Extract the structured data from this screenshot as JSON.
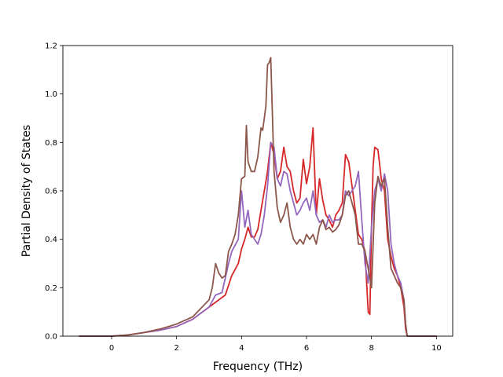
{
  "chart_data": {
    "type": "line",
    "title": "",
    "xlabel": "Frequency (THz)",
    "ylabel": "Partial Density of States",
    "xlim": [
      -1.5,
      10.5
    ],
    "ylim": [
      0.0,
      1.2
    ],
    "xticks": [
      0,
      2,
      4,
      6,
      8,
      10
    ],
    "yticks": [
      0.0,
      0.2,
      0.4,
      0.6,
      0.8,
      1.0,
      1.2
    ],
    "xtick_labels": [
      "0",
      "2",
      "4",
      "6",
      "8",
      "10"
    ],
    "ytick_labels": [
      "0.0",
      "0.2",
      "0.4",
      "0.6",
      "0.8",
      "1.0",
      "1.2"
    ],
    "grid": false,
    "legend": "none",
    "series": [
      {
        "color": "#d62728",
        "x": [
          -1.0,
          0.0,
          0.5,
          1.0,
          1.5,
          2.0,
          2.5,
          3.0,
          3.5,
          3.7,
          3.9,
          4.0,
          4.1,
          4.2,
          4.3,
          4.4,
          4.5,
          4.6,
          4.7,
          4.8,
          4.9,
          5.0,
          5.1,
          5.2,
          5.3,
          5.4,
          5.5,
          5.6,
          5.7,
          5.8,
          5.9,
          6.0,
          6.1,
          6.2,
          6.3,
          6.4,
          6.5,
          6.6,
          6.7,
          6.8,
          6.9,
          7.0,
          7.1,
          7.2,
          7.3,
          7.4,
          7.5,
          7.6,
          7.7,
          7.8,
          7.9,
          7.95,
          8.0,
          8.05,
          8.1,
          8.2,
          8.3,
          8.4,
          8.5,
          8.6,
          8.7,
          8.8,
          8.9,
          9.0,
          9.05,
          9.1,
          9.2,
          10.0
        ],
        "y": [
          0.0,
          0.0,
          0.005,
          0.015,
          0.025,
          0.04,
          0.07,
          0.12,
          0.17,
          0.25,
          0.3,
          0.36,
          0.4,
          0.45,
          0.41,
          0.41,
          0.44,
          0.52,
          0.6,
          0.68,
          0.8,
          0.75,
          0.65,
          0.68,
          0.78,
          0.7,
          0.68,
          0.6,
          0.55,
          0.57,
          0.73,
          0.63,
          0.7,
          0.86,
          0.5,
          0.65,
          0.56,
          0.5,
          0.48,
          0.45,
          0.5,
          0.52,
          0.55,
          0.75,
          0.72,
          0.62,
          0.52,
          0.42,
          0.4,
          0.35,
          0.1,
          0.09,
          0.45,
          0.7,
          0.78,
          0.77,
          0.65,
          0.6,
          0.4,
          0.33,
          0.28,
          0.25,
          0.2,
          0.12,
          0.03,
          0.0,
          0.0,
          0.0
        ]
      },
      {
        "color": "#9467bd",
        "x": [
          -1.0,
          0.0,
          0.5,
          1.0,
          1.5,
          2.0,
          2.5,
          3.0,
          3.2,
          3.4,
          3.6,
          3.7,
          3.9,
          4.0,
          4.1,
          4.2,
          4.3,
          4.4,
          4.5,
          4.6,
          4.7,
          4.8,
          4.9,
          5.0,
          5.1,
          5.2,
          5.3,
          5.4,
          5.5,
          5.6,
          5.7,
          5.8,
          5.9,
          6.0,
          6.1,
          6.2,
          6.3,
          6.4,
          6.5,
          6.6,
          6.7,
          6.8,
          6.9,
          7.0,
          7.1,
          7.2,
          7.3,
          7.4,
          7.5,
          7.6,
          7.7,
          7.8,
          7.9,
          8.0,
          8.1,
          8.2,
          8.3,
          8.4,
          8.5,
          8.6,
          8.7,
          8.8,
          8.9,
          9.0,
          9.05,
          9.1,
          9.2,
          10.0
        ],
        "y": [
          0.0,
          0.0,
          0.005,
          0.015,
          0.025,
          0.04,
          0.07,
          0.12,
          0.17,
          0.18,
          0.3,
          0.35,
          0.4,
          0.6,
          0.45,
          0.52,
          0.42,
          0.4,
          0.38,
          0.42,
          0.5,
          0.62,
          0.8,
          0.78,
          0.65,
          0.62,
          0.68,
          0.67,
          0.6,
          0.55,
          0.5,
          0.52,
          0.55,
          0.57,
          0.52,
          0.6,
          0.5,
          0.47,
          0.48,
          0.45,
          0.5,
          0.47,
          0.48,
          0.48,
          0.5,
          0.6,
          0.58,
          0.6,
          0.62,
          0.68,
          0.48,
          0.3,
          0.22,
          0.45,
          0.6,
          0.65,
          0.6,
          0.67,
          0.6,
          0.38,
          0.3,
          0.25,
          0.22,
          0.15,
          0.05,
          0.0,
          0.0,
          0.0
        ]
      },
      {
        "color": "#8c564b",
        "x": [
          -1.0,
          0.0,
          0.5,
          1.0,
          1.5,
          2.0,
          2.5,
          3.0,
          3.1,
          3.2,
          3.3,
          3.4,
          3.5,
          3.6,
          3.7,
          3.8,
          3.9,
          4.0,
          4.1,
          4.15,
          4.2,
          4.3,
          4.4,
          4.5,
          4.6,
          4.65,
          4.7,
          4.75,
          4.8,
          4.85,
          4.9,
          5.0,
          5.1,
          5.2,
          5.3,
          5.4,
          5.5,
          5.6,
          5.7,
          5.8,
          5.9,
          6.0,
          6.1,
          6.2,
          6.3,
          6.4,
          6.5,
          6.6,
          6.7,
          6.8,
          6.9,
          7.0,
          7.1,
          7.2,
          7.3,
          7.4,
          7.5,
          7.6,
          7.7,
          7.8,
          7.9,
          8.0,
          8.1,
          8.2,
          8.3,
          8.4,
          8.5,
          8.6,
          8.7,
          8.8,
          8.9,
          9.0,
          9.05,
          9.1,
          9.2,
          10.0
        ],
        "y": [
          0.0,
          0.0,
          0.005,
          0.015,
          0.03,
          0.05,
          0.08,
          0.15,
          0.2,
          0.3,
          0.26,
          0.24,
          0.25,
          0.35,
          0.38,
          0.42,
          0.5,
          0.65,
          0.66,
          0.87,
          0.72,
          0.68,
          0.68,
          0.74,
          0.86,
          0.85,
          0.9,
          0.95,
          1.12,
          1.13,
          1.15,
          0.68,
          0.53,
          0.47,
          0.5,
          0.55,
          0.45,
          0.4,
          0.38,
          0.4,
          0.38,
          0.42,
          0.4,
          0.42,
          0.38,
          0.45,
          0.48,
          0.44,
          0.45,
          0.43,
          0.44,
          0.46,
          0.5,
          0.58,
          0.6,
          0.55,
          0.5,
          0.38,
          0.38,
          0.35,
          0.28,
          0.2,
          0.55,
          0.66,
          0.62,
          0.65,
          0.45,
          0.28,
          0.25,
          0.22,
          0.2,
          0.15,
          0.05,
          0.0,
          0.0,
          0.0
        ]
      }
    ]
  }
}
